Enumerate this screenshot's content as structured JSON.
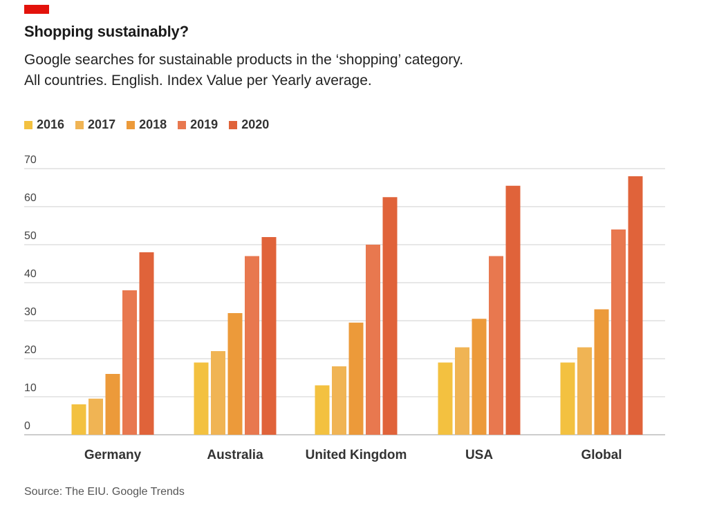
{
  "header": {
    "title": "Shopping sustainably?",
    "subtitle_line1": "Google searches for sustainable products in the ‘shopping’ category.",
    "subtitle_line2": "All countries. English. Index Value per Yearly average."
  },
  "source": "Source: The EIU. Google Trends",
  "colors": {
    "brand_tag": "#e3120b",
    "grid": "#cfcfcf",
    "axis_text": "#444444"
  },
  "chart_data": {
    "type": "bar",
    "categories": [
      "Germany",
      "Australia",
      "United Kingdom",
      "USA",
      "Global"
    ],
    "series": [
      {
        "name": "2016",
        "color": "#f3c140",
        "values": [
          8,
          19,
          13,
          19,
          19
        ]
      },
      {
        "name": "2017",
        "color": "#f0b454",
        "values": [
          9.5,
          22,
          18,
          23,
          23
        ]
      },
      {
        "name": "2018",
        "color": "#ec9a3a",
        "values": [
          16,
          32,
          29.5,
          30.5,
          33
        ]
      },
      {
        "name": "2019",
        "color": "#e8784f",
        "values": [
          38,
          47,
          50,
          47,
          54
        ]
      },
      {
        "name": "2020",
        "color": "#e0633a",
        "values": [
          48,
          52,
          62.5,
          65.5,
          68
        ]
      }
    ],
    "yticks": [
      "0",
      "10",
      "20",
      "30",
      "40",
      "50",
      "60",
      "70"
    ],
    "ylim": [
      0,
      70
    ],
    "grid": true,
    "legend_position": "top-left"
  }
}
